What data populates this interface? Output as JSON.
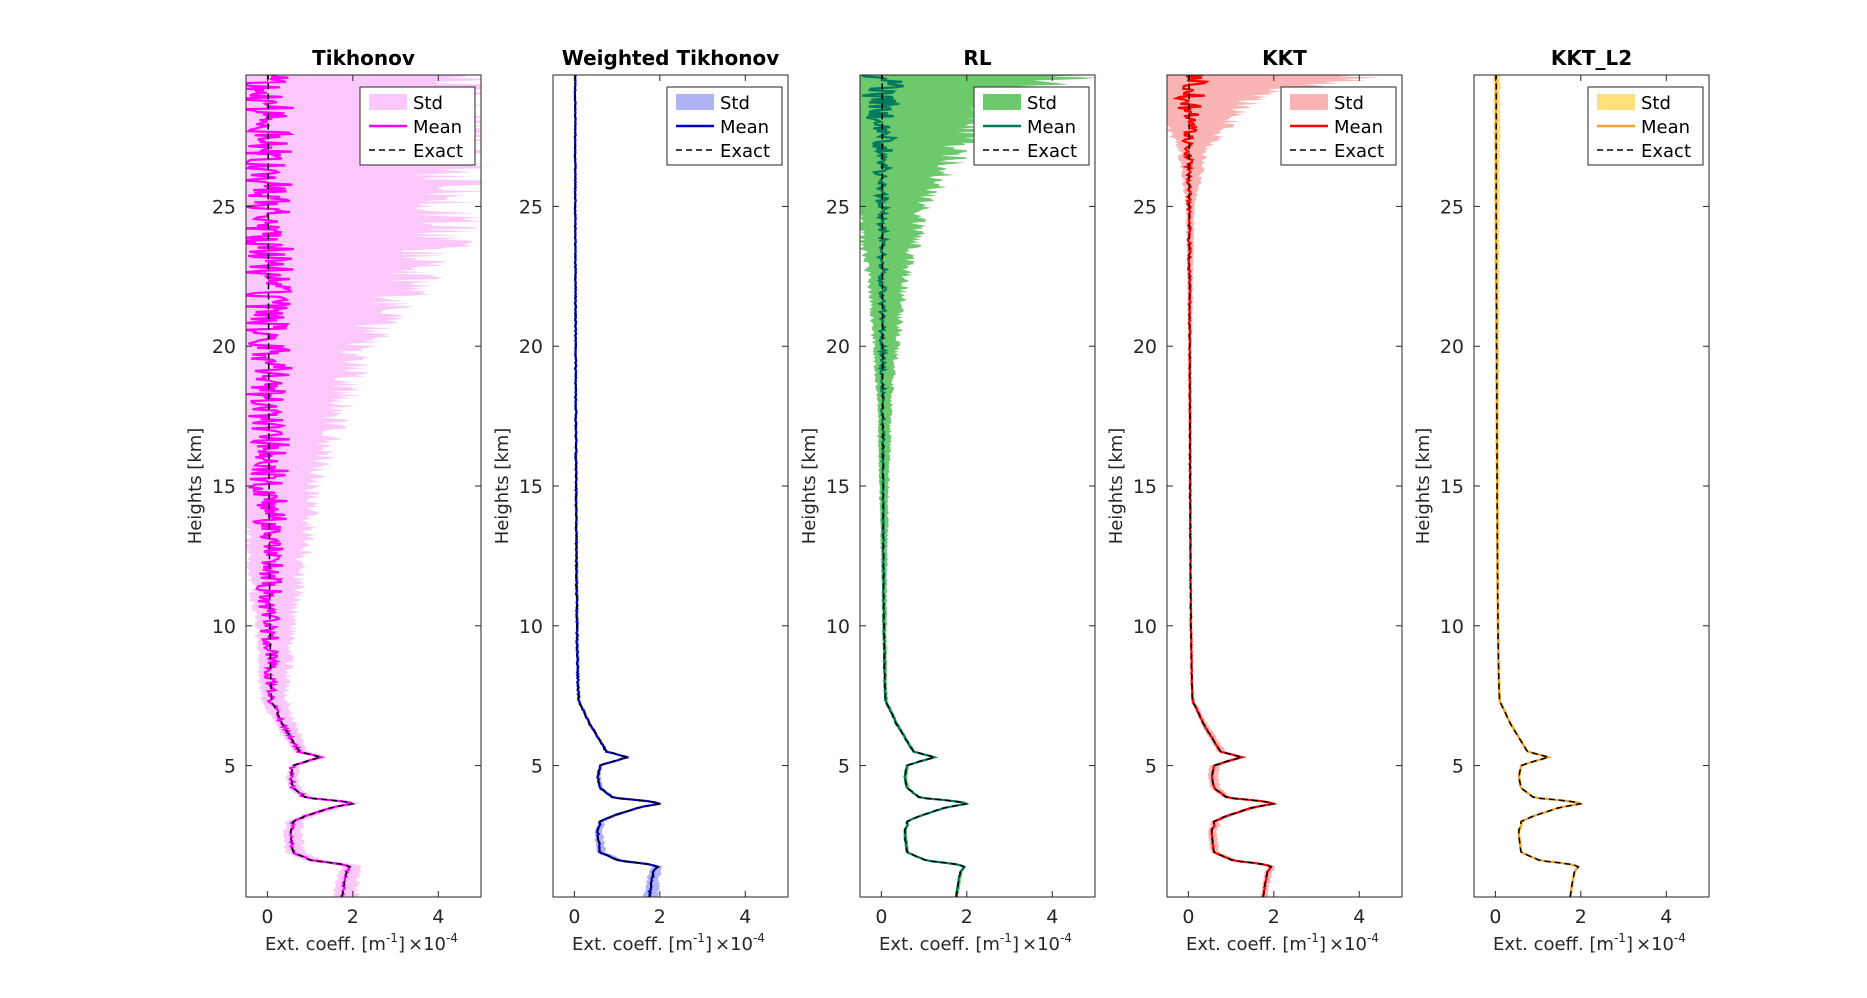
{
  "figure": {
    "background": "#ffffff",
    "scale_label": "10",
    "scale_exponent": "-4",
    "scale_times": "×"
  },
  "chart_data": [
    {
      "type": "line",
      "title": "Tikhonov",
      "xlabel": "Ext. coeff. [m",
      "xlabel_sup": "-1",
      "xlabel_end": "]",
      "ylabel": "Heights [km]",
      "xlim": [
        -0.5,
        5
      ],
      "ylim": [
        0.3,
        29.7
      ],
      "xticks": [
        0,
        2,
        4
      ],
      "yticks": [
        5,
        10,
        15,
        20,
        25
      ],
      "legend": [
        "Std",
        "Mean",
        "Exact"
      ],
      "legend_location": "top-right",
      "mean_color": "#ff00ff",
      "std_color": "#fcc8fc",
      "std_band_halfwidth": [
        [
          0.3,
          0.35
        ],
        [
          5,
          0.15
        ],
        [
          7,
          0.35
        ],
        [
          10,
          0.55
        ],
        [
          15,
          1.1
        ],
        [
          20,
          2.2
        ],
        [
          24,
          4.3
        ],
        [
          29.7,
          4.6
        ]
      ],
      "mean_noise_amplitude": [
        [
          0.3,
          0.03
        ],
        [
          7,
          0.06
        ],
        [
          10,
          0.25
        ],
        [
          15,
          0.45
        ],
        [
          20,
          0.6
        ],
        [
          29.7,
          0.6
        ]
      ]
    },
    {
      "type": "line",
      "title": "Weighted Tikhonov",
      "xlabel": "Ext. coeff. [m",
      "xlabel_sup": "-1",
      "xlabel_end": "]",
      "ylabel": "Heights [km]",
      "xlim": [
        -0.5,
        5
      ],
      "ylim": [
        0.3,
        29.7
      ],
      "xticks": [
        0,
        2,
        4
      ],
      "yticks": [
        5,
        10,
        15,
        20,
        25
      ],
      "legend": [
        "Std",
        "Mean",
        "Exact"
      ],
      "legend_location": "top-right",
      "mean_color": "#0000cc",
      "std_color": "#b0b4f4",
      "std_band_halfwidth": [
        [
          0.3,
          0.22
        ],
        [
          1.5,
          0.15
        ],
        [
          5,
          0.05
        ],
        [
          29.7,
          0.02
        ]
      ],
      "mean_noise_amplitude": [
        [
          0.3,
          0.02
        ],
        [
          29.7,
          0.01
        ]
      ]
    },
    {
      "type": "line",
      "title": "RL",
      "xlabel": "Ext. coeff. [m",
      "xlabel_sup": "-1",
      "xlabel_end": "]",
      "ylabel": "Heights [km]",
      "xlim": [
        -0.5,
        5
      ],
      "ylim": [
        0.3,
        29.7
      ],
      "xticks": [
        0,
        2,
        4
      ],
      "yticks": [
        5,
        10,
        15,
        20,
        25
      ],
      "legend": [
        "Std",
        "Mean",
        "Exact"
      ],
      "legend_location": "top-right",
      "mean_color": "#007a5e",
      "std_color": "#6cc96c",
      "std_band_halfwidth": [
        [
          0.3,
          0.05
        ],
        [
          8,
          0.05
        ],
        [
          12,
          0.08
        ],
        [
          18,
          0.2
        ],
        [
          22,
          0.5
        ],
        [
          25,
          1.0
        ],
        [
          27,
          1.8
        ],
        [
          29,
          3.0
        ],
        [
          29.7,
          5.0
        ]
      ],
      "mean_noise_amplitude": [
        [
          0.3,
          0.01
        ],
        [
          15,
          0.02
        ],
        [
          24,
          0.1
        ],
        [
          27,
          0.25
        ],
        [
          29.7,
          0.6
        ]
      ]
    },
    {
      "type": "line",
      "title": "KKT",
      "xlabel": "Ext. coeff. [m",
      "xlabel_sup": "-1",
      "xlabel_end": "]",
      "ylabel": "Heights [km]",
      "xlim": [
        -0.5,
        5
      ],
      "ylim": [
        0.3,
        29.7
      ],
      "xticks": [
        0,
        2,
        4
      ],
      "yticks": [
        5,
        10,
        15,
        20,
        25
      ],
      "legend": [
        "Std",
        "Mean",
        "Exact"
      ],
      "legend_location": "top-right",
      "mean_color": "#ff0000",
      "std_color": "#fbb4b4",
      "std_band_halfwidth": [
        [
          0.3,
          0.1
        ],
        [
          5,
          0.15
        ],
        [
          8,
          0.03
        ],
        [
          20,
          0.05
        ],
        [
          25,
          0.12
        ],
        [
          27,
          0.4
        ],
        [
          29,
          1.6
        ],
        [
          29.7,
          4.5
        ]
      ],
      "mean_noise_amplitude": [
        [
          0.3,
          0.01
        ],
        [
          20,
          0.01
        ],
        [
          26,
          0.05
        ],
        [
          28,
          0.2
        ],
        [
          29.7,
          0.5
        ]
      ]
    },
    {
      "type": "line",
      "title": "KKT_L2",
      "xlabel": "Ext. coeff. [m",
      "xlabel_sup": "-1",
      "xlabel_end": "]",
      "ylabel": "Heights [km]",
      "xlim": [
        -0.5,
        5
      ],
      "ylim": [
        0.3,
        29.7
      ],
      "xticks": [
        0,
        2,
        4
      ],
      "yticks": [
        5,
        10,
        15,
        20,
        25
      ],
      "legend": [
        "Std",
        "Mean",
        "Exact"
      ],
      "legend_location": "top-right",
      "mean_color": "#f5a030",
      "std_color": "#fde07a",
      "std_band_halfwidth": [
        [
          0.3,
          0.04
        ],
        [
          10,
          0.04
        ],
        [
          20,
          0.06
        ],
        [
          26,
          0.08
        ],
        [
          29.7,
          0.1
        ]
      ],
      "mean_noise_amplitude": [
        [
          0.3,
          0.005
        ],
        [
          29.7,
          0.01
        ]
      ]
    }
  ],
  "exact_profile": {
    "height_km": [
      0.3,
      0.8,
      1.2,
      1.4,
      1.5,
      1.6,
      1.9,
      2.5,
      2.7,
      2.85,
      3.0,
      3.2,
      3.5,
      3.65,
      3.75,
      3.85,
      4.2,
      4.6,
      5.0,
      5.15,
      5.3,
      5.5,
      6.0,
      6.5,
      7.0,
      7.3,
      8.0,
      10.0,
      12.0,
      15.0,
      20.0,
      25.0,
      29.7
    ],
    "ext_coeff_1e-4": [
      1.75,
      1.8,
      1.85,
      1.95,
      1.65,
      1.05,
      0.6,
      0.55,
      0.55,
      0.6,
      0.6,
      0.9,
      1.5,
      2.05,
      1.6,
      0.9,
      0.6,
      0.55,
      0.6,
      0.9,
      1.25,
      0.75,
      0.55,
      0.35,
      0.2,
      0.1,
      0.08,
      0.06,
      0.05,
      0.04,
      0.03,
      0.02,
      0.02
    ]
  }
}
